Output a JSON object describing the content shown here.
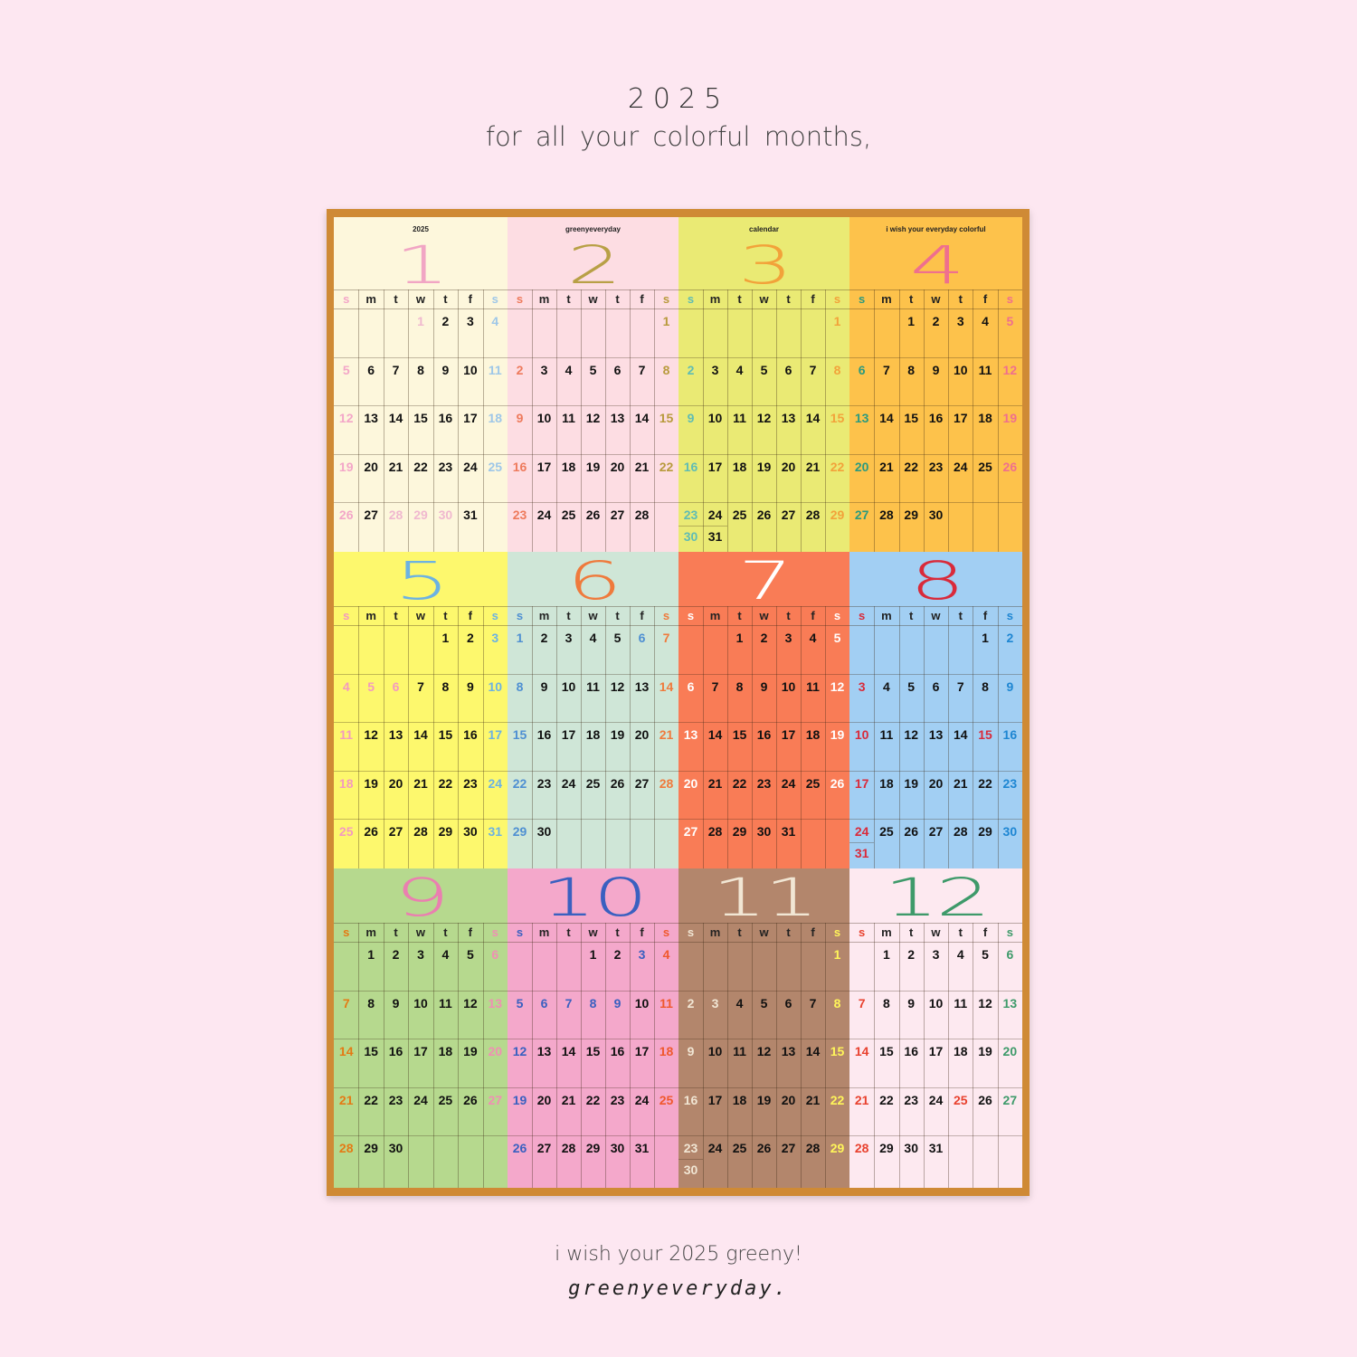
{
  "header": {
    "year": "2025",
    "tagline": "for all your  colorful  months,"
  },
  "footer": {
    "wish": "i wish your 2025 greeny!",
    "brand": "greenyeveryday."
  },
  "weekdays": [
    "s",
    "m",
    "t",
    "w",
    "t",
    "f",
    "s"
  ],
  "months": [
    {
      "caption": "2025",
      "number": "1",
      "bg": "#fdf7dc",
      "num_color": "#f1a5c4",
      "sun_color": "#f3a6c8",
      "sat_color": "#9ec7e8",
      "muted_color": "#f0b8cf",
      "start": 3,
      "days": 31
    },
    {
      "caption": "greenyeveryday",
      "number": "2",
      "bg": "#fddde3",
      "num_color": "#b8a046",
      "sun_color": "#ee7a5c",
      "sat_color": "#b89a3c",
      "muted_color": "",
      "start": 6,
      "days": 28
    },
    {
      "caption": "calendar",
      "number": "3",
      "bg": "#eaea74",
      "num_color": "#f2a23a",
      "sun_color": "#5fbcb4",
      "sat_color": "#f2a23a",
      "muted_color": "",
      "start": 6,
      "days": 31
    },
    {
      "caption": "i wish your everyday colorful",
      "number": "4",
      "bg": "#fdc24b",
      "num_color": "#ef6f8e",
      "sun_color": "#2c9a7e",
      "sat_color": "#ef6f8e",
      "muted_color": "",
      "start": 2,
      "days": 30
    },
    {
      "caption": "",
      "number": "5",
      "bg": "#fdf86d",
      "num_color": "#6cb2e2",
      "sun_color": "#f39abf",
      "sat_color": "#6cb2e2",
      "muted_color": "",
      "start": 4,
      "days": 31
    },
    {
      "caption": "",
      "number": "6",
      "bg": "#cfe6d7",
      "num_color": "#ef7a3c",
      "sun_color": "#4e8fd2",
      "sat_color": "#ef7a3c",
      "muted_color": "",
      "start": 0,
      "days": 30
    },
    {
      "caption": "",
      "number": "7",
      "bg": "#f97c56",
      "num_color": "#ffffff",
      "sun_color": "#ffffff",
      "sat_color": "#ffffff",
      "muted_color": "",
      "start": 2,
      "days": 31
    },
    {
      "caption": "",
      "number": "8",
      "bg": "#a2cff3",
      "num_color": "#d92a3a",
      "sun_color": "#d92a3a",
      "sat_color": "#1e86d2",
      "muted_color": "",
      "start": 5,
      "days": 31
    },
    {
      "caption": "",
      "number": "9",
      "bg": "#b6d98e",
      "num_color": "#ea7fb0",
      "sun_color": "#e47a14",
      "sat_color": "#f08fb3",
      "muted_color": "",
      "start": 1,
      "days": 30
    },
    {
      "caption": "",
      "number": "10",
      "bg": "#f4a8cb",
      "num_color": "#3a60c0",
      "sun_color": "#3a60c0",
      "sat_color": "#f0582e",
      "muted_color": "",
      "start": 3,
      "days": 31
    },
    {
      "caption": "",
      "number": "11",
      "bg": "#b3866c",
      "num_color": "#f1e6d4",
      "sun_color": "#f1e6d4",
      "sat_color": "#fff55a",
      "muted_color": "",
      "start": 6,
      "days": 30
    },
    {
      "caption": "",
      "number": "12",
      "bg": "#fde9f0",
      "num_color": "#3e9a6a",
      "sun_color": "#e8412e",
      "sat_color": "#3e9a6a",
      "muted_color": "",
      "start": 1,
      "days": 31
    }
  ]
}
